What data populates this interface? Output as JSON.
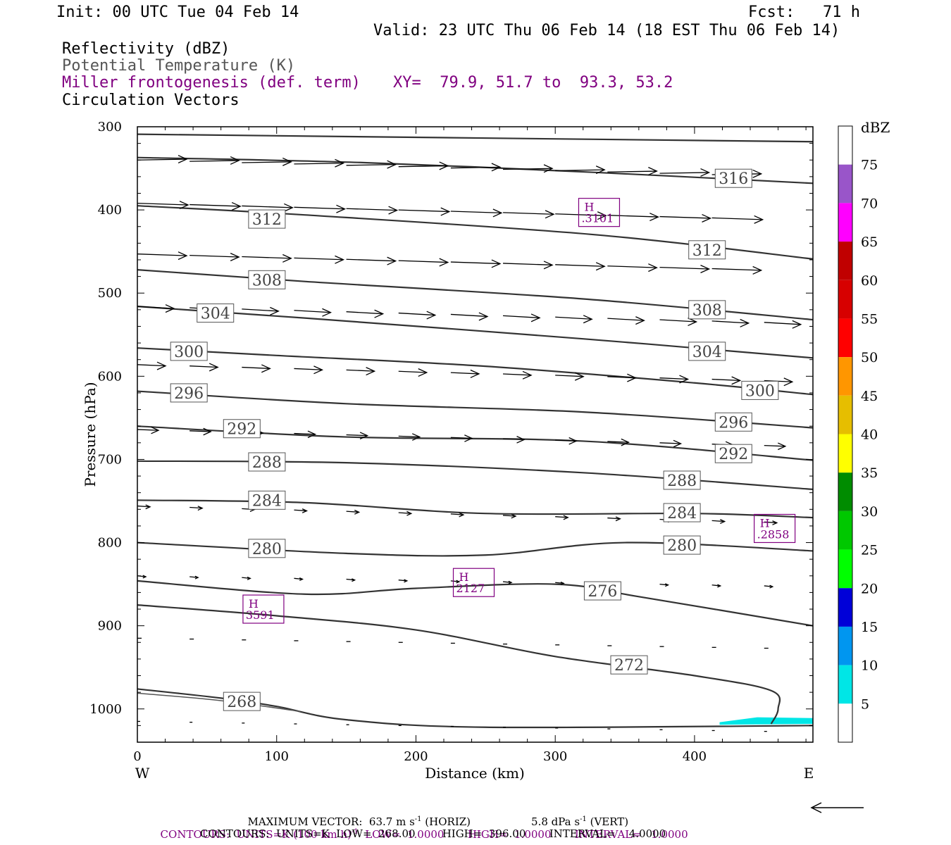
{
  "header": {
    "init": "Init: 00 UTC Tue 04 Feb 14",
    "fcst_label": "Fcst:",
    "fcst_value": "71 h",
    "valid": "Valid: 23 UTC Thu 06 Feb 14 (18 EST Thu 06 Feb 14)",
    "field1": "Reflectivity (dBZ)",
    "field2": "Potential Temperature (K)",
    "field3": "Miller frontogenesis (def. term)",
    "xy": "XY=  79.9, 51.7 to  93.3, 53.2",
    "field4": "Circulation Vectors"
  },
  "footer": {
    "max_vector_prefix": "MAXIMUM VECTOR:  63.7 m s",
    "max_vector_h": " (HORIZ)",
    "max_vector_v_prefix": "5.8 dPa s",
    "max_vector_v": " (VERT)",
    "sup": "-1",
    "contours1_prefix": "CONTOURS:  UNITS=K (100 km h)",
    "contours1_rest": "  LOW=  1.0000       HIGH=  1.0000       INTERVAL=   1.0000",
    "contours2": "CONTOURS:  UNITS=K  LOW=  268.00        HIGH=  396.00       INTERVAL=    4.0000"
  },
  "chart_data": {
    "type": "cross-section",
    "xlabel": "Distance (km)",
    "ylabel": "Pressure (hPa)",
    "xlim": [
      0,
      485
    ],
    "ylim": [
      1040,
      300
    ],
    "xticks": [
      0,
      100,
      200,
      300,
      400
    ],
    "yticks": [
      300,
      400,
      500,
      600,
      700,
      800,
      900,
      1000
    ],
    "west_label": "W",
    "east_label": "E",
    "colorbar": {
      "title": "dBZ",
      "labels": [
        "5",
        "10",
        "15",
        "20",
        "25",
        "30",
        "35",
        "40",
        "45",
        "50",
        "55",
        "60",
        "65",
        "70",
        "75"
      ],
      "colors": [
        "#ffffff",
        "#00e6e6",
        "#0096f0",
        "#0000d8",
        "#00ff00",
        "#00c800",
        "#008c00",
        "#ffff00",
        "#e6be00",
        "#ff9600",
        "#ff0000",
        "#d70000",
        "#c00000",
        "#ff00ff",
        "#9955c9",
        "#ffffff"
      ]
    },
    "isentropes": [
      {
        "label": "",
        "points": [
          [
            0,
            309
          ],
          [
            485,
            318
          ]
        ]
      },
      {
        "label": "316",
        "points": [
          [
            0,
            337
          ],
          [
            160,
            343
          ],
          [
            330,
            355
          ],
          [
            485,
            368
          ]
        ],
        "label_at": [
          428,
          362
        ]
      },
      {
        "label": "312",
        "points": [
          [
            0,
            395
          ],
          [
            120,
            406
          ],
          [
            330,
            430
          ],
          [
            485,
            459
          ]
        ],
        "label_at": [
          93,
          411
        ]
      },
      {
        "label": "312",
        "points": [],
        "label_at": [
          409,
          448
        ]
      },
      {
        "label": "308",
        "points": [
          [
            0,
            472
          ],
          [
            120,
            486
          ],
          [
            320,
            507
          ],
          [
            485,
            532
          ]
        ],
        "label_at": [
          93,
          484
        ]
      },
      {
        "label": "308",
        "points": [],
        "label_at": [
          409,
          520
        ]
      },
      {
        "label": "304",
        "points": [
          [
            0,
            516
          ],
          [
            120,
            530
          ],
          [
            320,
            555
          ],
          [
            485,
            578
          ]
        ],
        "label_at": [
          56,
          524
        ]
      },
      {
        "label": "304",
        "points": [],
        "label_at": [
          409,
          570
        ]
      },
      {
        "label": "300",
        "points": [
          [
            0,
            566
          ],
          [
            100,
            575
          ],
          [
            250,
            588
          ],
          [
            400,
            608
          ],
          [
            485,
            622
          ]
        ],
        "label_at": [
          37,
          570
        ]
      },
      {
        "label": "300",
        "points": [],
        "label_at": [
          447,
          617
        ]
      },
      {
        "label": "296",
        "points": [
          [
            0,
            618
          ],
          [
            150,
            633
          ],
          [
            320,
            643
          ],
          [
            485,
            662
          ]
        ],
        "label_at": [
          37,
          620
        ]
      },
      {
        "label": "296",
        "points": [],
        "label_at": [
          428,
          655
        ]
      },
      {
        "label": "292",
        "points": [
          [
            0,
            660
          ],
          [
            150,
            673
          ],
          [
            320,
            678
          ],
          [
            485,
            701
          ]
        ],
        "label_at": [
          75,
          663
        ]
      },
      {
        "label": "292",
        "points": [],
        "label_at": [
          428,
          693
        ]
      },
      {
        "label": "288",
        "points": [
          [
            0,
            702
          ],
          [
            150,
            704
          ],
          [
            320,
            716
          ],
          [
            485,
            736
          ]
        ],
        "label_at": [
          93,
          703
        ]
      },
      {
        "label": "288",
        "points": [],
        "label_at": [
          391,
          725
        ]
      },
      {
        "label": "284",
        "points": [
          [
            0,
            749
          ],
          [
            120,
            752
          ],
          [
            250,
            765
          ],
          [
            400,
            765
          ],
          [
            485,
            770
          ]
        ],
        "label_at": [
          93,
          749
        ]
      },
      {
        "label": "284",
        "points": [],
        "label_at": [
          391,
          764
        ]
      },
      {
        "label": "280",
        "points": [
          [
            0,
            800
          ],
          [
            150,
            813
          ],
          [
            250,
            815
          ],
          [
            350,
            800
          ],
          [
            485,
            810
          ]
        ],
        "label_at": [
          93,
          807
        ]
      },
      {
        "label": "280",
        "points": [],
        "label_at": [
          391,
          803
        ]
      },
      {
        "label": "276",
        "points": [
          [
            0,
            846
          ],
          [
            120,
            862
          ],
          [
            200,
            855
          ],
          [
            300,
            850
          ],
          [
            360,
            865
          ],
          [
            485,
            900
          ]
        ],
        "label_at": [
          334,
          858
        ]
      },
      {
        "label": "272",
        "points": [
          [
            0,
            875
          ],
          [
            100,
            888
          ],
          [
            200,
            905
          ],
          [
            300,
            937
          ],
          [
            400,
            960
          ],
          [
            455,
            978
          ],
          [
            460,
            1000
          ],
          [
            455,
            1018
          ]
        ],
        "label_at": [
          353,
          947
        ]
      },
      {
        "label": "268",
        "points": [
          [
            0,
            976
          ],
          [
            60,
            987
          ],
          [
            100,
            997
          ],
          [
            150,
            1013
          ],
          [
            250,
            1022
          ],
          [
            485,
            1020
          ]
        ],
        "label_at": [
          75,
          991
        ]
      }
    ],
    "frontogenesis_maxima": [
      {
        "label": "H",
        "value": ".3101",
        "x": 332,
        "p": 403
      },
      {
        "label": "H",
        "value": ".2858",
        "x": 458,
        "p": 783
      },
      {
        "label": "H",
        "value": "2127",
        "x": 242,
        "p": 848
      },
      {
        "label": "H",
        "value": "3591",
        "x": 91,
        "p": 880
      }
    ],
    "reflectivity_area": {
      "dbz": "5-10",
      "points": [
        [
          418,
          1016
        ],
        [
          445,
          1010
        ],
        [
          485,
          1011
        ],
        [
          485,
          1018
        ],
        [
          418,
          1019
        ]
      ]
    }
  }
}
